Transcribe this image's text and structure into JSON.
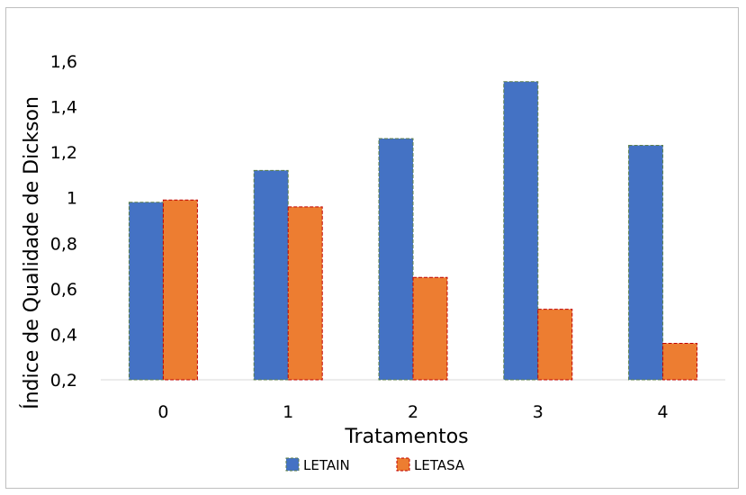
{
  "chart_data": {
    "type": "bar",
    "categories": [
      "0",
      "1",
      "2",
      "3",
      "4"
    ],
    "series": [
      {
        "name": "LETAIN",
        "color": "#4472c4",
        "values": [
          0.98,
          1.12,
          1.26,
          1.51,
          1.23
        ]
      },
      {
        "name": "LETASA",
        "color": "#ed7d31",
        "values": [
          0.99,
          0.96,
          0.65,
          0.51,
          0.36
        ]
      }
    ],
    "xlabel": "Tratamentos",
    "ylabel": "Índice de Qualidade de Dickson",
    "ylim": [
      0.2,
      1.6
    ],
    "yticks": [
      "0,2",
      "0,4",
      "0,6",
      "0,8",
      "1",
      "1,2",
      "1,4",
      "1,6"
    ],
    "ytick_values": [
      0.2,
      0.4,
      0.6,
      0.8,
      1.0,
      1.2,
      1.4,
      1.6
    ],
    "grid": false,
    "legend_position": "bottom",
    "bar_border_style": "dashed"
  }
}
